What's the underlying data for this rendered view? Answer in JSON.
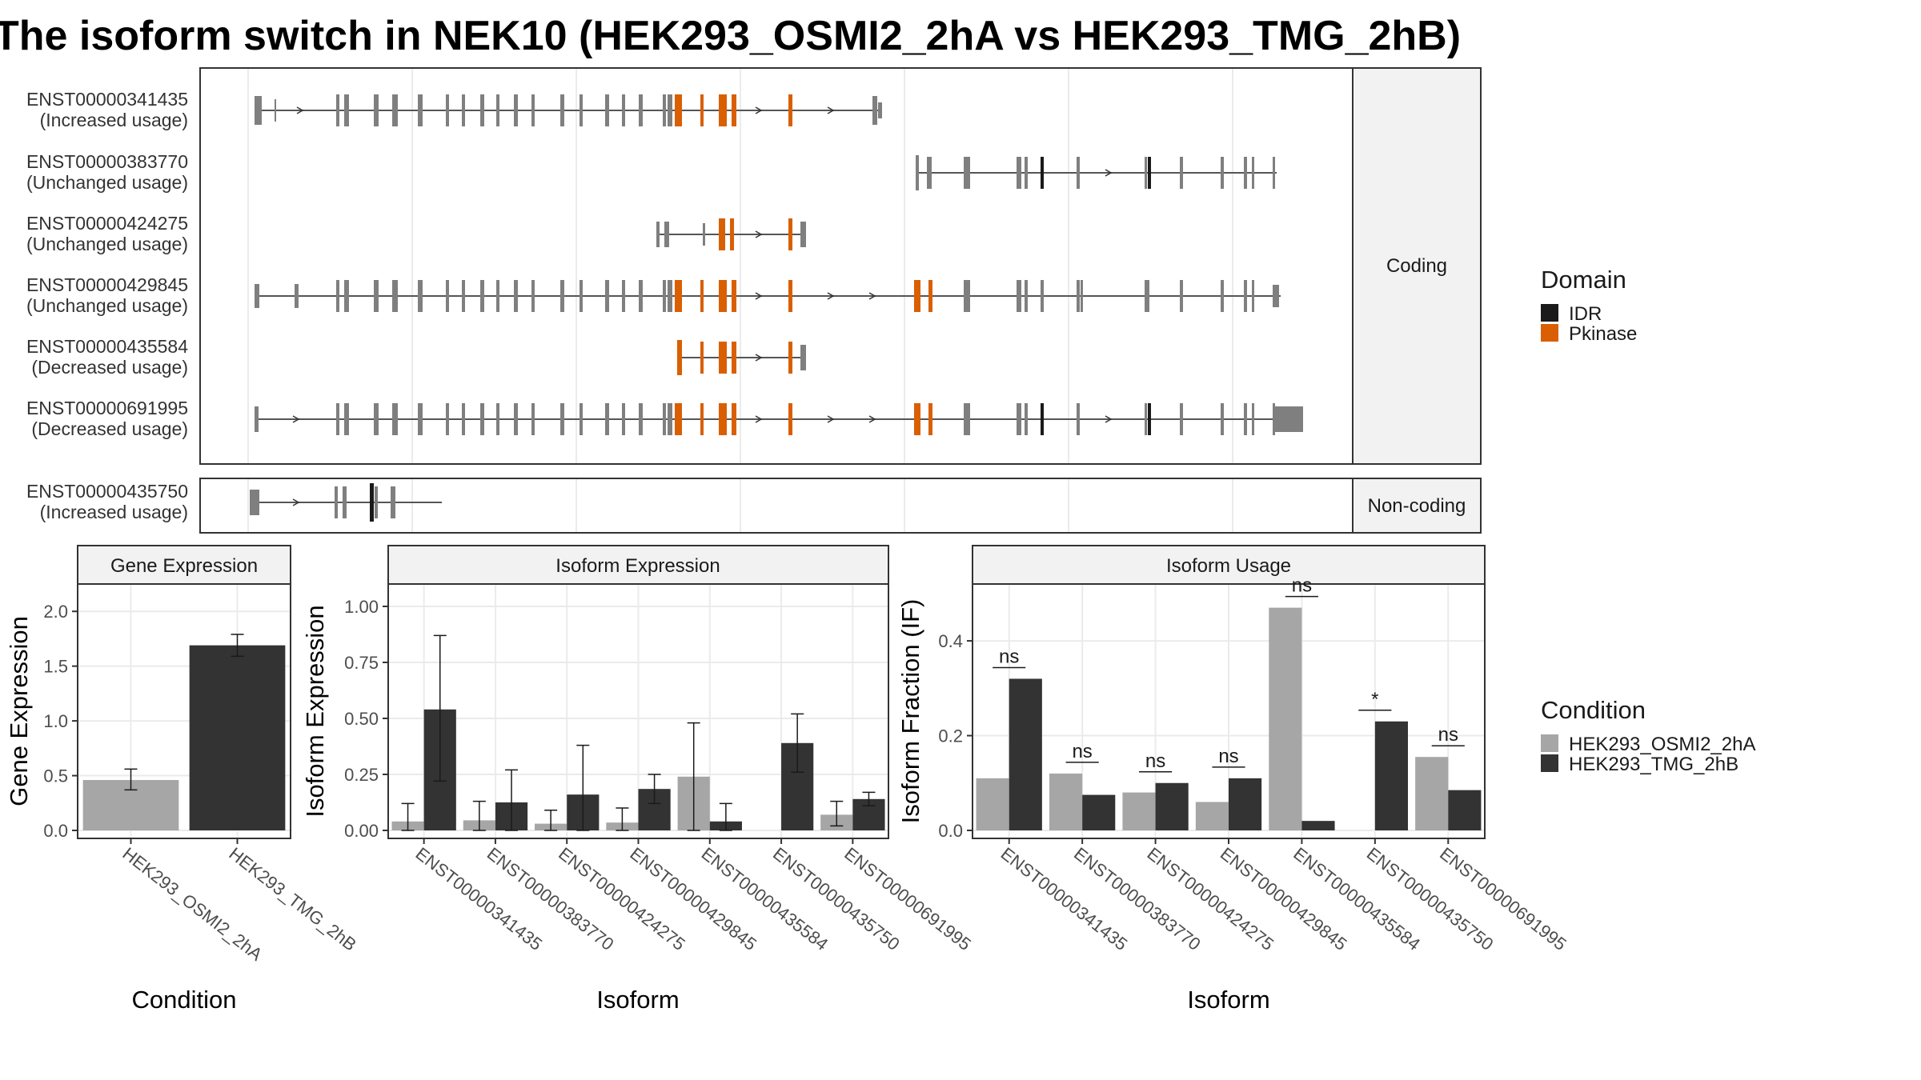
{
  "title": "The isoform switch in NEK10 (HEK293_OSMI2_2hA vs HEK293_TMG_2hB)",
  "colors": {
    "exon": "#7f7f7f",
    "IDR": "#1a1a1a",
    "Pkinase": "#d95f02",
    "cond1": "#a6a6a6",
    "cond2": "#333333",
    "strip": "#f2f2f2",
    "grid": "#ebebeb"
  },
  "structure": {
    "coding_strip": "Coding",
    "noncoding_strip": "Non-coding",
    "legend_title": "Domain",
    "legend_items": [
      {
        "name": "IDR",
        "color": "#1a1a1a"
      },
      {
        "name": "Pkinase",
        "color": "#d95f02"
      }
    ],
    "transcripts": [
      {
        "id": "ENST00000341435",
        "status": "(Increased usage)",
        "group": "coding"
      },
      {
        "id": "ENST00000383770",
        "status": "(Unchanged usage)",
        "group": "coding"
      },
      {
        "id": "ENST00000424275",
        "status": "(Unchanged usage)",
        "group": "coding"
      },
      {
        "id": "ENST00000429845",
        "status": "(Unchanged usage)",
        "group": "coding"
      },
      {
        "id": "ENST00000435584",
        "status": "(Decreased usage)",
        "group": "coding"
      },
      {
        "id": "ENST00000691995",
        "status": "(Decreased usage)",
        "group": "coding"
      },
      {
        "id": "ENST00000435750",
        "status": "(Increased usage)",
        "group": "noncoding"
      }
    ]
  },
  "chart_data": [
    {
      "type": "bar",
      "title": "Gene Expression",
      "xlabel": "Condition",
      "ylabel": "Gene Expression",
      "categories": [
        "HEK293_OSMI2_2hA",
        "HEK293_TMG_2hB"
      ],
      "values": [
        0.46,
        1.69
      ],
      "error_low": [
        0.37,
        1.59
      ],
      "error_high": [
        0.56,
        1.79
      ],
      "ylim": [
        0,
        2.25
      ],
      "yticks": [
        "0.0",
        "0.5",
        "1.0",
        "1.5",
        "2.0"
      ]
    },
    {
      "type": "bar",
      "title": "Isoform Expression",
      "xlabel": "Isoform",
      "ylabel": "Isoform Expression",
      "categories": [
        "ENST00000341435",
        "ENST00000383770",
        "ENST00000424275",
        "ENST00000429845",
        "ENST00000435584",
        "ENST00000435750",
        "ENST00000691995"
      ],
      "series": [
        {
          "name": "HEK293_OSMI2_2hA",
          "values": [
            0.04,
            0.045,
            0.03,
            0.035,
            0.24,
            0.0,
            0.07
          ],
          "error_low": [
            0.0,
            0.0,
            0.0,
            0.0,
            0.0,
            0.0,
            0.02
          ],
          "error_high": [
            0.12,
            0.13,
            0.09,
            0.1,
            0.48,
            0.0,
            0.13
          ]
        },
        {
          "name": "HEK293_TMG_2hB",
          "values": [
            0.54,
            0.125,
            0.16,
            0.185,
            0.04,
            0.39,
            0.14
          ],
          "error_low": [
            0.22,
            0.0,
            0.0,
            0.12,
            0.0,
            0.26,
            0.11
          ],
          "error_high": [
            0.87,
            0.27,
            0.38,
            0.25,
            0.12,
            0.52,
            0.17
          ]
        }
      ],
      "ylim": [
        0,
        1.1
      ],
      "yticks": [
        "0.00",
        "0.25",
        "0.50",
        "0.75",
        "1.00"
      ]
    },
    {
      "type": "bar",
      "title": "Isoform Usage",
      "xlabel": "Isoform",
      "ylabel": "Isoform Fraction (IF)",
      "categories": [
        "ENST00000341435",
        "ENST00000383770",
        "ENST00000424275",
        "ENST00000429845",
        "ENST00000435584",
        "ENST00000435750",
        "ENST00000691995"
      ],
      "series": [
        {
          "name": "HEK293_OSMI2_2hA",
          "values": [
            0.11,
            0.12,
            0.08,
            0.06,
            0.47,
            0.0,
            0.155
          ]
        },
        {
          "name": "HEK293_TMG_2hB",
          "values": [
            0.32,
            0.075,
            0.1,
            0.11,
            0.02,
            0.23,
            0.085
          ]
        }
      ],
      "significance": [
        "ns",
        "ns",
        "ns",
        "ns",
        "ns",
        "*",
        "ns"
      ],
      "ylim": [
        0,
        0.52
      ],
      "yticks": [
        "0.0",
        "0.2",
        "0.4"
      ]
    }
  ],
  "condition_legend": {
    "title": "Condition",
    "items": [
      {
        "name": "HEK293_OSMI2_2hA",
        "color": "#a6a6a6"
      },
      {
        "name": "HEK293_TMG_2hB",
        "color": "#333333"
      }
    ]
  }
}
